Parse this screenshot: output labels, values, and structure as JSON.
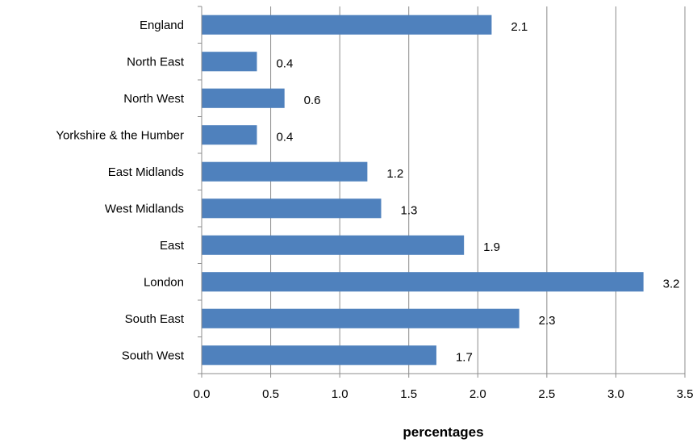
{
  "chart_data": {
    "type": "bar",
    "orientation": "horizontal",
    "categories": [
      "England",
      "North East",
      "North West",
      "Yorkshire & the Humber",
      "East Midlands",
      "West Midlands",
      "East",
      "London",
      "South East",
      "South West"
    ],
    "values": [
      2.1,
      0.4,
      0.6,
      0.4,
      1.2,
      1.3,
      1.9,
      3.2,
      2.3,
      1.7
    ],
    "data_labels": [
      "2.1",
      "0.4",
      "0.6",
      "0.4",
      "1.2",
      "1.3",
      "1.9",
      "3.2",
      "2.3",
      "1.7"
    ],
    "xticks": [
      "0.0",
      "0.5",
      "1.0",
      "1.5",
      "2.0",
      "2.5",
      "3.0",
      "3.5"
    ],
    "xlim": [
      0,
      3.5
    ],
    "xlabel": "percentages",
    "ylabel": "",
    "title": "",
    "grid": "vertical",
    "legend": "none",
    "bar_color": "#4f81bd",
    "grid_color": "#8c8c8c"
  }
}
